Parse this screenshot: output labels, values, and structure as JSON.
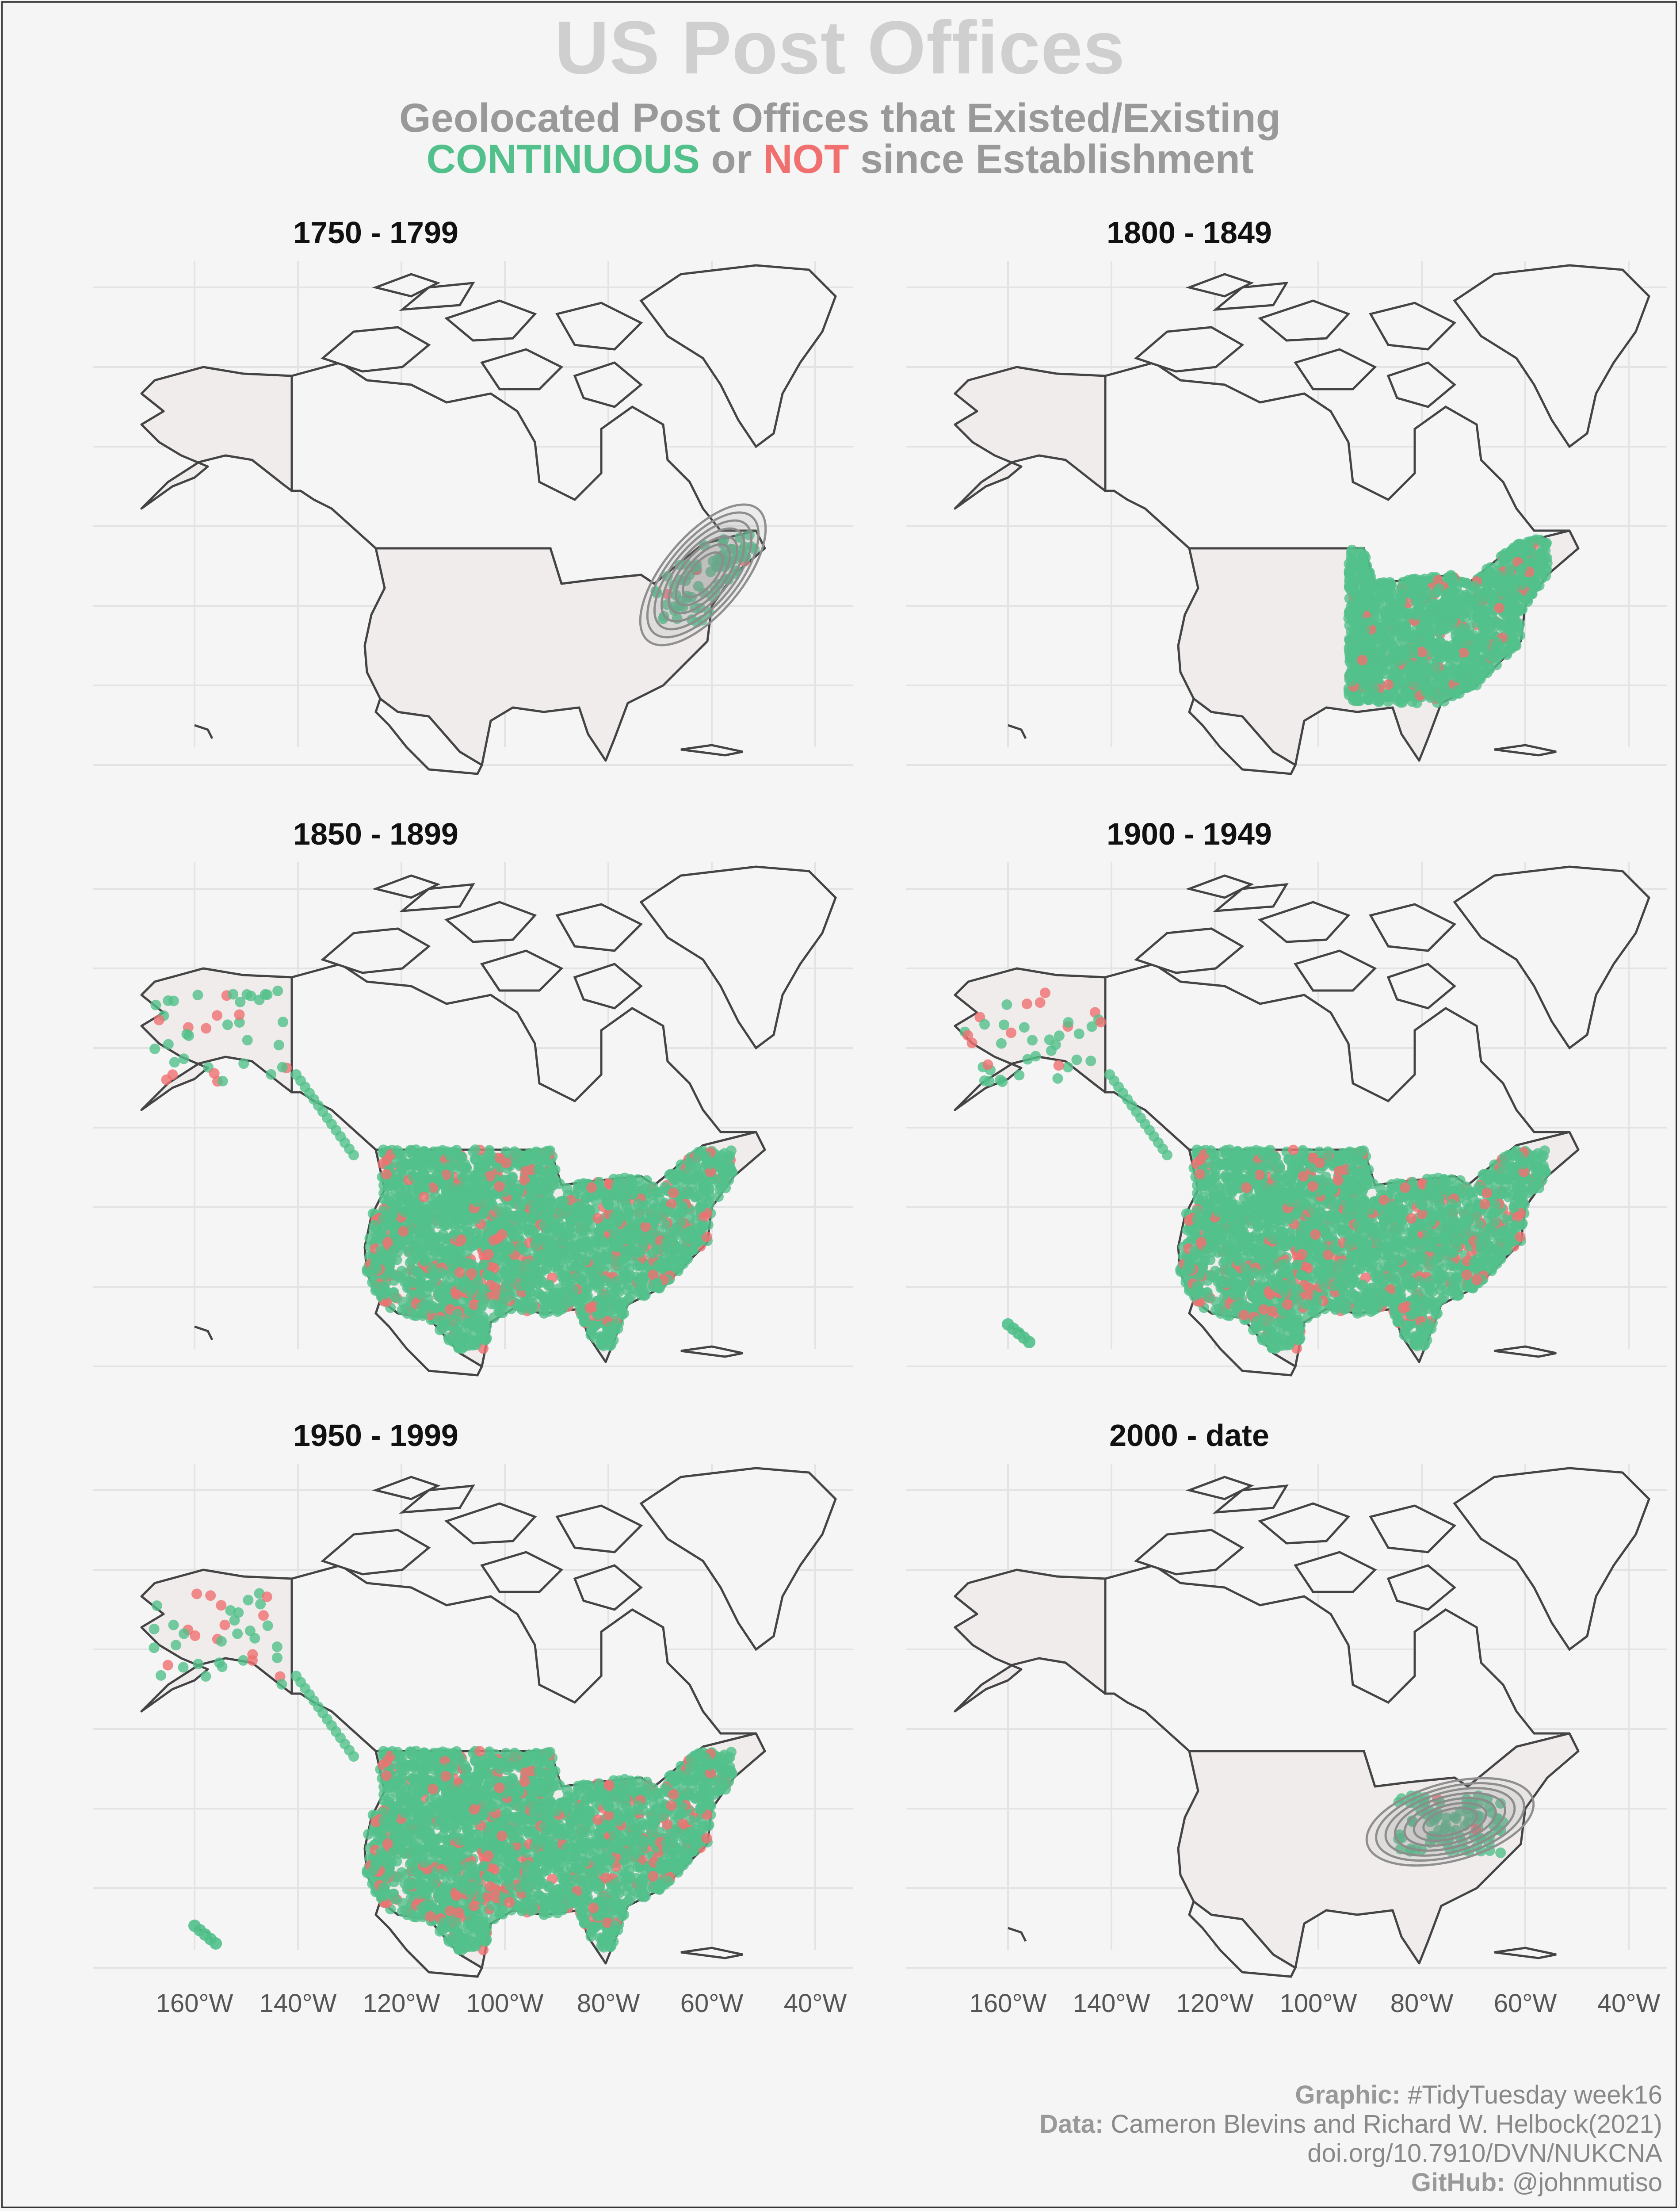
{
  "title": "US Post Offices",
  "subtitle": {
    "line1": "Geolocated Post Offices that Existed/Existing",
    "continuous": "CONTINUOUS",
    "or": "or",
    "not": "NOT",
    "rest": "since Establishment"
  },
  "colors": {
    "background": "#f5f5f5",
    "continuous": "#52c08b",
    "not_continuous": "#f07070",
    "land": "#efeceb",
    "outline": "#444444",
    "contour": "#8f8f8f"
  },
  "caption": {
    "graphic_label": "Graphic:",
    "graphic_value": "#TidyTuesday week16",
    "data_label": "Data:",
    "data_value": "Cameron Blevins and Richard W. Helbock(2021)",
    "doi": "doi.org/10.7910/DVN/NUKCNA",
    "github_label": "GitHub:",
    "github_value": "@johnmutiso"
  },
  "chart_data": {
    "type": "scatter",
    "projection": "map of North America",
    "lon_ticks": [
      -160,
      -140,
      -120,
      -100,
      -80,
      -60,
      -40
    ],
    "lon_tick_labels": [
      "160°W",
      "140°W",
      "120°W",
      "100°W",
      "80°W",
      "60°W",
      "40°W"
    ],
    "series": [
      {
        "name": "CONTINUOUS"
      },
      {
        "name": "NOT"
      }
    ],
    "panels": [
      {
        "period": "1750 - 1799",
        "coverage": "east",
        "density_contours": true,
        "alaska": false,
        "hawaii": false
      },
      {
        "period": "1800 - 1849",
        "coverage": "east-half",
        "density_contours": false,
        "alaska": false,
        "hawaii": false
      },
      {
        "period": "1850 - 1899",
        "coverage": "full",
        "density_contours": false,
        "alaska": true,
        "hawaii": false
      },
      {
        "period": "1900 - 1949",
        "coverage": "full",
        "density_contours": false,
        "alaska": true,
        "hawaii": true
      },
      {
        "period": "1950 - 1999",
        "coverage": "full",
        "density_contours": false,
        "alaska": true,
        "hawaii": true
      },
      {
        "period": "2000 - date",
        "coverage": "southeast",
        "density_contours": true,
        "alaska": false,
        "hawaii": false
      }
    ]
  }
}
